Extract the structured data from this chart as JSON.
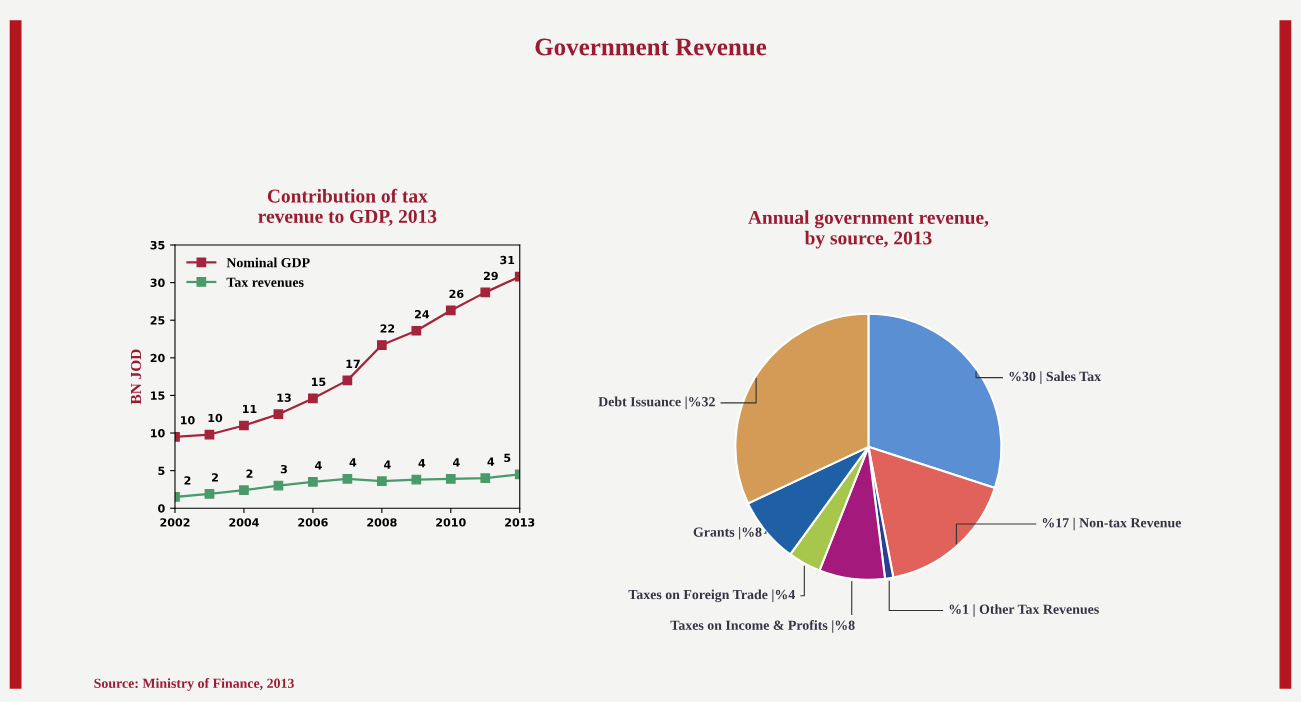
{
  "chart_data": [
    {
      "type": "line",
      "title": "Contribution of tax\nrevenue to GDP, 2013",
      "ylabel": "BN JOD",
      "categories": [
        "2002",
        null,
        "2004",
        null,
        "2006",
        null,
        "2008",
        null,
        "2010",
        null,
        "2013"
      ],
      "series": [
        {
          "name": "Nominal GDP",
          "color": "#a3243b",
          "values": [
            9.5,
            9.8,
            11.0,
            12.5,
            14.6,
            17.0,
            21.7,
            23.6,
            26.3,
            28.7,
            30.8
          ],
          "value_labels": [
            "10",
            "10",
            "11",
            "13",
            "15",
            "17",
            "22",
            "24",
            "26",
            "29",
            "31"
          ]
        },
        {
          "name": "Tax revenues",
          "color": "#4a9a6a",
          "values": [
            1.5,
            1.9,
            2.4,
            3.0,
            3.5,
            3.9,
            3.6,
            3.8,
            3.9,
            4.0,
            4.5
          ],
          "value_labels": [
            "2",
            "2",
            "2",
            "3",
            "4",
            "4",
            "4",
            "4",
            "4",
            "4",
            "5"
          ]
        }
      ],
      "ylim": [
        0,
        35
      ],
      "yticks": [
        0,
        5,
        10,
        15,
        20,
        25,
        30,
        35
      ],
      "marker": "square",
      "line_style": "solid",
      "legend": "top left",
      "grid": false,
      "annotations": [
        "Government Revenue",
        "Source: Ministry of Finance, 2013"
      ]
    },
    {
      "type": "pie",
      "title": "Annual government revenue,\nby source, 2013",
      "categories": [
        "%30 | Sales Tax",
        "%17 | Non-tax Revenue",
        "%1 | Other Tax Revenues",
        "Taxes on Income & Profits |%8",
        "Taxes on Foreign Trade |%4",
        "Grants |%8",
        "Debt Issuance |%32"
      ],
      "values": [
        30,
        17,
        1,
        8,
        4,
        8,
        32
      ],
      "colors": [
        "#5b8fd3",
        "#e0625a",
        "#2a3f8f",
        "#a3197c",
        "#a6c64c",
        "#1f5fa6",
        "#d39b55"
      ]
    }
  ]
}
